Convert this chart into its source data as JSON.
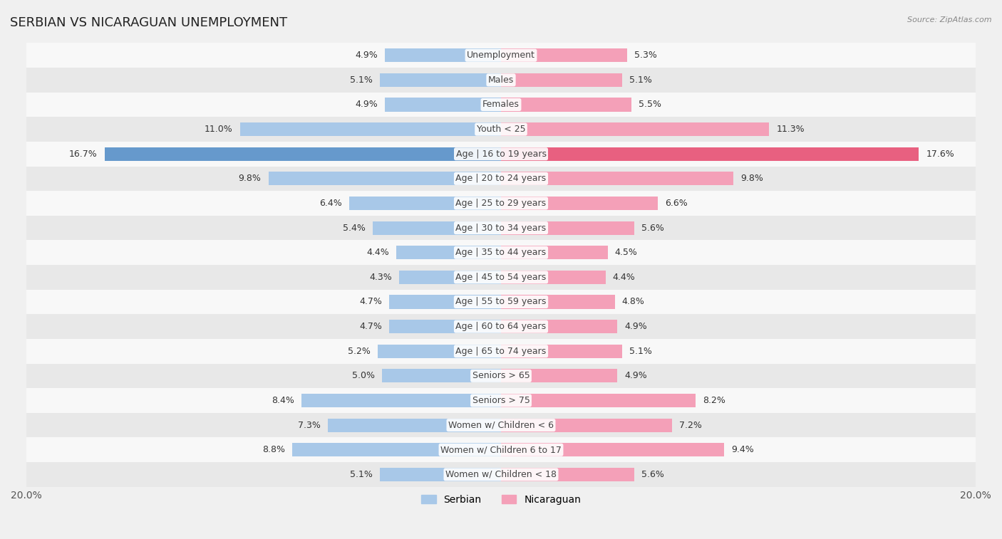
{
  "title": "SERBIAN VS NICARAGUAN UNEMPLOYMENT",
  "source": "Source: ZipAtlas.com",
  "categories": [
    "Unemployment",
    "Males",
    "Females",
    "Youth < 25",
    "Age | 16 to 19 years",
    "Age | 20 to 24 years",
    "Age | 25 to 29 years",
    "Age | 30 to 34 years",
    "Age | 35 to 44 years",
    "Age | 45 to 54 years",
    "Age | 55 to 59 years",
    "Age | 60 to 64 years",
    "Age | 65 to 74 years",
    "Seniors > 65",
    "Seniors > 75",
    "Women w/ Children < 6",
    "Women w/ Children 6 to 17",
    "Women w/ Children < 18"
  ],
  "serbian": [
    4.9,
    5.1,
    4.9,
    11.0,
    16.7,
    9.8,
    6.4,
    5.4,
    4.4,
    4.3,
    4.7,
    4.7,
    5.2,
    5.0,
    8.4,
    7.3,
    8.8,
    5.1
  ],
  "nicaraguan": [
    5.3,
    5.1,
    5.5,
    11.3,
    17.6,
    9.8,
    6.6,
    5.6,
    4.5,
    4.4,
    4.8,
    4.9,
    5.1,
    4.9,
    8.2,
    7.2,
    9.4,
    5.6
  ],
  "serbian_color": "#a8c8e8",
  "nicaraguan_color": "#f4a0b8",
  "highlight_serbian_color": "#6699cc",
  "highlight_nicaraguan_color": "#e86080",
  "background_color": "#f0f0f0",
  "row_color_light": "#f8f8f8",
  "row_color_dark": "#e8e8e8",
  "xlim": 20.0,
  "legend_serbian": "Serbian",
  "legend_nicaraguan": "Nicaraguan",
  "bar_height": 0.55
}
